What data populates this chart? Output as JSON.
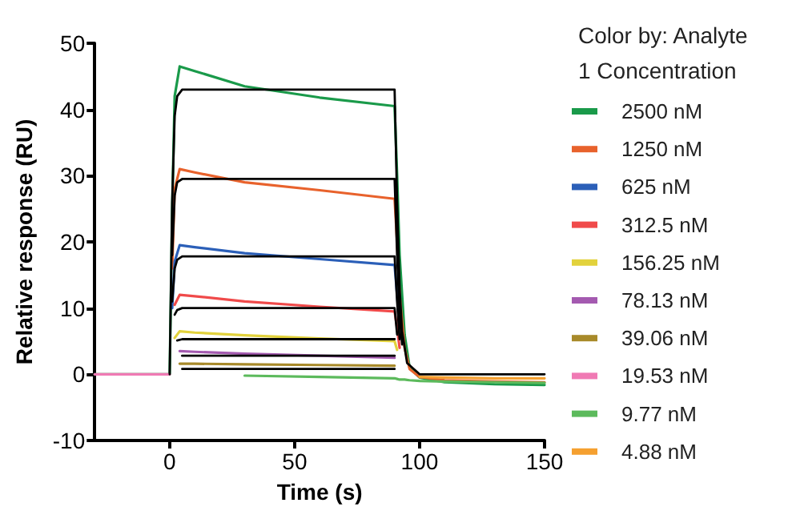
{
  "chart_data": {
    "type": "line",
    "xlabel": "Time (s)",
    "ylabel": "Relative response (RU)",
    "legend_title": "Color by: Analyte\n1 Concentration",
    "xlim": [
      -30,
      150
    ],
    "xticks": [
      0,
      50,
      100,
      150
    ],
    "ylim": [
      -10,
      50
    ],
    "yticks": [
      -10,
      0,
      10,
      20,
      30,
      40,
      50
    ],
    "grid": false,
    "legend": "right",
    "marker": "none",
    "line_style": "solid",
    "series": [
      {
        "name": "2500 nM",
        "color": "#1a9a4a",
        "x": [
          -30,
          -10,
          0,
          1,
          2,
          4,
          10,
          30,
          60,
          90,
          91,
          92,
          94,
          96,
          100,
          110,
          130,
          150
        ],
        "values": [
          0,
          0,
          0,
          25,
          42,
          46.5,
          45.8,
          43.5,
          41.8,
          40.5,
          30,
          18,
          6,
          1,
          -0.5,
          -1.2,
          -1.5,
          -1.6
        ]
      },
      {
        "name": "1250 nM",
        "color": "#e8622c",
        "x": [
          1,
          2,
          4,
          10,
          30,
          60,
          90,
          91,
          92,
          94,
          96,
          100,
          110,
          130,
          150
        ],
        "values": [
          16,
          28,
          31,
          30.5,
          29,
          27.8,
          26.5,
          20,
          12,
          4,
          0.8,
          -0.4,
          -0.9,
          -1.1,
          -1.2
        ]
      },
      {
        "name": "625 nM",
        "color": "#2b5fb8",
        "x": [
          1,
          2,
          4,
          10,
          30,
          60,
          90,
          91,
          92
        ],
        "values": [
          10,
          17,
          19.5,
          19.2,
          18.3,
          17.4,
          16.5,
          12,
          7
        ]
      },
      {
        "name": "312.5 nM",
        "color": "#f04a4a",
        "x": [
          2,
          4,
          10,
          30,
          60,
          90,
          91,
          92
        ],
        "values": [
          10.5,
          12,
          11.8,
          11,
          10.2,
          9.5,
          7,
          4
        ]
      },
      {
        "name": "156.25 nM",
        "color": "#e2d23c",
        "x": [
          2,
          4,
          10,
          30,
          60,
          90,
          91
        ],
        "values": [
          5.5,
          6.5,
          6.3,
          5.9,
          5.4,
          5,
          3.7
        ]
      },
      {
        "name": "78.13 nM",
        "color": "#a45ab0",
        "x": [
          4,
          10,
          30,
          60,
          90
        ],
        "values": [
          3.5,
          3.4,
          3.1,
          2.8,
          2.5
        ]
      },
      {
        "name": "39.06 nM",
        "color": "#a88a2a",
        "x": [
          4,
          10,
          30,
          60,
          90
        ],
        "values": [
          1.6,
          1.6,
          1.5,
          1.4,
          1.3
        ]
      },
      {
        "name": "19.53 nM",
        "color": "#f07ab4",
        "x": [
          -30,
          -20,
          -10,
          0
        ],
        "values": [
          0,
          0,
          0,
          0
        ]
      },
      {
        "name": "9.77 nM",
        "color": "#5cba5c",
        "x": [
          30,
          60,
          90,
          91,
          92,
          94,
          96,
          100,
          110,
          130,
          150
        ],
        "values": [
          -0.2,
          -0.4,
          -0.6,
          -0.7,
          -0.8,
          -0.8,
          -0.9,
          -1,
          -1.1,
          -1.2,
          -1.3
        ]
      },
      {
        "name": "4.88 nM",
        "color": "#f5a030",
        "x": [
          100,
          110,
          130,
          150
        ],
        "values": [
          -0.4,
          -0.5,
          -0.6,
          -0.6
        ]
      },
      {
        "color": "#000000",
        "x": [
          0,
          1,
          2,
          3,
          5,
          10,
          90,
          91,
          92,
          93,
          95,
          100,
          150
        ],
        "values": [
          0,
          26,
          39,
          42,
          43,
          43,
          43,
          26,
          13,
          6.5,
          1.7,
          0,
          0
        ]
      },
      {
        "color": "#000000",
        "x": [
          1,
          2,
          3,
          5,
          10,
          90,
          91,
          92,
          93
        ],
        "values": [
          18,
          27,
          29,
          29.5,
          29.5,
          29.5,
          18,
          9,
          4.5
        ]
      },
      {
        "color": "#000000",
        "x": [
          1,
          2,
          3,
          5,
          10,
          90,
          91,
          92
        ],
        "values": [
          11,
          16,
          17.3,
          17.8,
          17.8,
          17.8,
          11,
          5.3
        ]
      },
      {
        "color": "#000000",
        "x": [
          2,
          3,
          5,
          10,
          90,
          91
        ],
        "values": [
          9,
          9.7,
          10,
          10,
          10,
          6
        ]
      },
      {
        "color": "#000000",
        "x": [
          3,
          5,
          10,
          90
        ],
        "values": [
          5.1,
          5.3,
          5.3,
          5.3
        ]
      },
      {
        "color": "#000000",
        "x": [
          5,
          10,
          90
        ],
        "values": [
          2.8,
          2.8,
          2.8
        ]
      },
      {
        "color": "#000000",
        "x": [
          5,
          10,
          90
        ],
        "values": [
          0.8,
          0.8,
          0.8
        ]
      }
    ]
  }
}
